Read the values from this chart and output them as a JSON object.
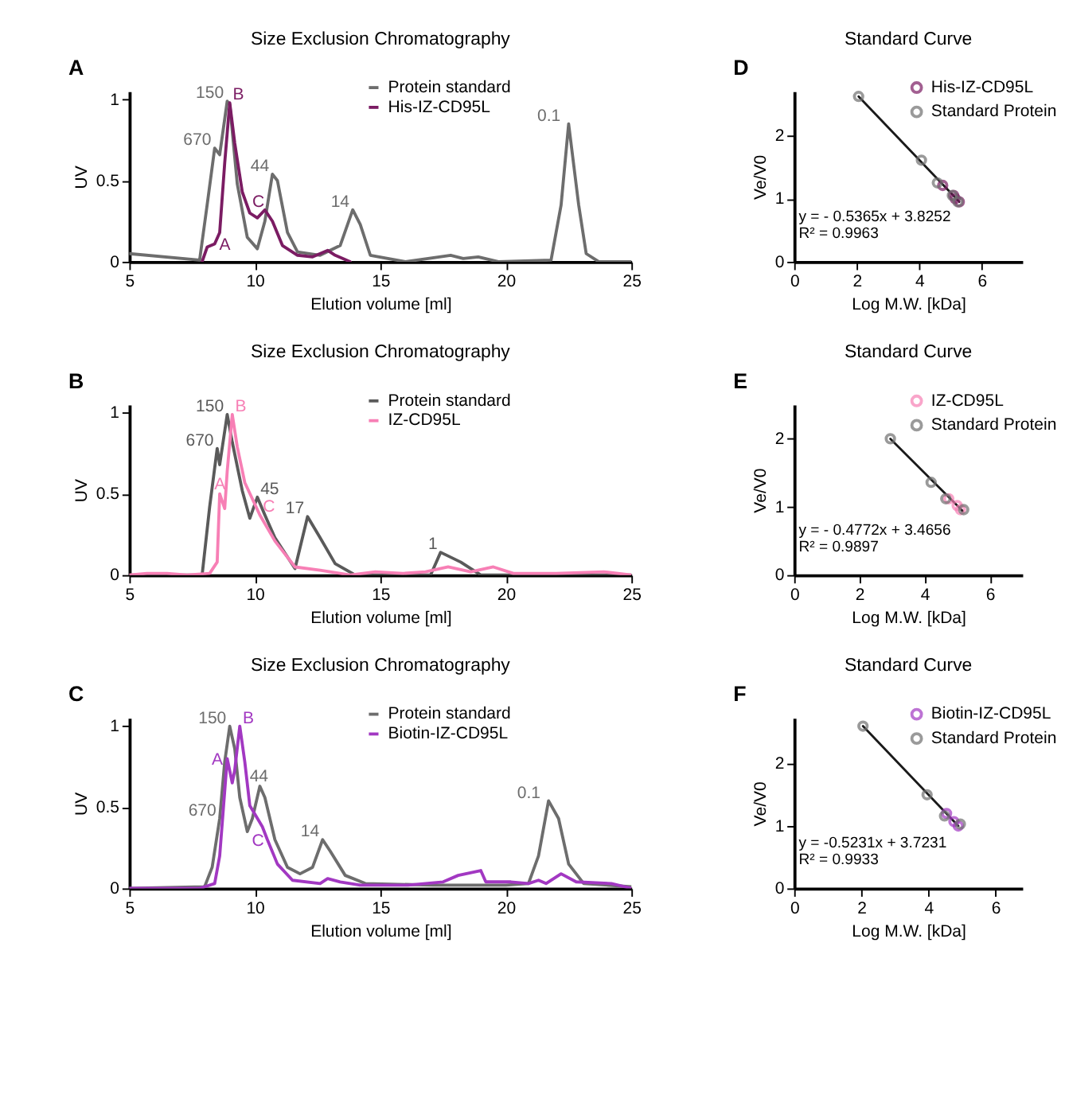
{
  "chart_data": [
    {
      "type": "line",
      "title": "Size Exclusion Chromatography",
      "xlabel": "Elution volume [ml]",
      "ylabel": "UV",
      "xlim": [
        5,
        25
      ],
      "xticks": [
        5,
        10,
        15,
        20,
        25
      ],
      "ylim": [
        0,
        1.05
      ],
      "yticks": [
        0,
        0.5,
        1
      ],
      "legend": "top right",
      "series": [
        {
          "name": "Protein standard",
          "color": "#6d6d6d",
          "x": [
            5,
            7.8,
            8.1,
            8.4,
            8.6,
            8.9,
            9.0,
            9.3,
            9.7,
            10.1,
            10.4,
            10.7,
            10.9,
            11.3,
            11.7,
            12.6,
            13.4,
            13.9,
            14.2,
            14.6,
            16.0,
            17.8,
            18.3,
            18.9,
            19.7,
            21.8,
            22.2,
            22.5,
            22.9,
            23.2,
            23.7,
            25
          ],
          "values": [
            0.05,
            0.01,
            0.35,
            0.7,
            0.66,
            0.99,
            0.97,
            0.48,
            0.15,
            0.08,
            0.25,
            0.54,
            0.5,
            0.18,
            0.06,
            0.04,
            0.1,
            0.32,
            0.23,
            0.04,
            0.0,
            0.04,
            0.02,
            0.03,
            0.0,
            0.01,
            0.35,
            0.85,
            0.35,
            0.05,
            0.0,
            0.0
          ]
        },
        {
          "name": "His-IZ-CD95L",
          "color": "#7b1c63",
          "x": [
            7.9,
            8.1,
            8.4,
            8.6,
            8.8,
            9.0,
            9.2,
            9.5,
            9.8,
            10.1,
            10.4,
            10.7,
            11.1,
            11.7,
            12.3,
            12.9,
            13.2,
            13.8
          ],
          "values": [
            0.0,
            0.09,
            0.11,
            0.18,
            0.61,
            0.98,
            0.73,
            0.43,
            0.3,
            0.27,
            0.32,
            0.25,
            0.1,
            0.04,
            0.03,
            0.07,
            0.04,
            0.0
          ]
        }
      ],
      "annotations": [
        "A",
        {
          "text": "670",
          "x": 8.4,
          "y": 0.7
        },
        {
          "text": "150",
          "x": 8.9,
          "y": 0.99
        },
        {
          "text": "B",
          "x": 9.0,
          "y": 0.98
        },
        {
          "text": "A",
          "x": 8.4,
          "y": 0.11
        },
        {
          "text": "C",
          "x": 10.4,
          "y": 0.32
        },
        {
          "text": "44",
          "x": 10.7,
          "y": 0.54
        },
        {
          "text": "14",
          "x": 13.9,
          "y": 0.32
        },
        {
          "text": "0.1",
          "x": 22.5,
          "y": 0.85
        }
      ]
    },
    {
      "type": "scatter",
      "title": "Standard Curve",
      "xlabel": "Log M.W. [kDa]",
      "ylabel": "Ve/V0",
      "xlim": [
        0,
        7.3
      ],
      "xticks": [
        0,
        2,
        4,
        6
      ],
      "ylim": [
        0,
        2.7
      ],
      "yticks": [
        0,
        1,
        2
      ],
      "legend": "top right",
      "marker": "circle",
      "series": [
        {
          "type": "line",
          "marker": "none",
          "color": "#1a1a1a",
          "x": [
            2.06,
            5.28
          ],
          "values": [
            2.62,
            0.95
          ]
        },
        {
          "name": "His-IZ-CD95L",
          "color": "#7b1c63",
          "x": [
            4.75,
            5.1,
            5.15,
            5.28
          ],
          "values": [
            1.21,
            1.05,
            1.0,
            0.95
          ]
        },
        {
          "name": "Standard Protein",
          "color": "#707070",
          "x": [
            2.06,
            4.07,
            4.58,
            5.06,
            5.24
          ],
          "values": [
            2.62,
            1.61,
            1.25,
            1.05,
            0.95
          ]
        }
      ],
      "annotations": [
        "D",
        "y = - 0.5365x + 3.8252",
        "R² = 0.9963"
      ]
    },
    {
      "type": "line",
      "title": "Size Exclusion Chromatography",
      "xlabel": "Elution volume [ml]",
      "ylabel": "UV",
      "xlim": [
        5,
        25
      ],
      "xticks": [
        5,
        10,
        15,
        20,
        25
      ],
      "ylim": [
        0,
        1.05
      ],
      "yticks": [
        0,
        0.5,
        1
      ],
      "legend": "top right",
      "series": [
        {
          "name": "Protein standard",
          "color": "#5a5a5a",
          "x": [
            5,
            7.9,
            8.2,
            8.5,
            8.6,
            8.9,
            9.1,
            9.5,
            9.8,
            10.1,
            10.4,
            10.8,
            11.6,
            12.1,
            12.6,
            13.2,
            14.0,
            17.0,
            17.2,
            17.4,
            18.2,
            19.0,
            25
          ],
          "values": [
            0.0,
            0.0,
            0.42,
            0.78,
            0.68,
            0.99,
            0.82,
            0.52,
            0.35,
            0.48,
            0.37,
            0.23,
            0.04,
            0.36,
            0.23,
            0.07,
            0.0,
            0.0,
            0.07,
            0.14,
            0.08,
            0.0,
            0.0
          ]
        },
        {
          "name": "IZ-CD95L",
          "color": "#f77fb5",
          "x": [
            5,
            5.7,
            6.5,
            7.3,
            8.2,
            8.5,
            8.6,
            8.8,
            8.9,
            9.1,
            9.3,
            9.6,
            10.2,
            10.8,
            11.6,
            12.6,
            13.8,
            14.8,
            15.9,
            16.8,
            17.7,
            18.6,
            19.5,
            20.3,
            22.0,
            23.9,
            25
          ],
          "values": [
            0.0,
            0.01,
            0.01,
            0.0,
            0.01,
            0.08,
            0.5,
            0.41,
            0.64,
            0.99,
            0.79,
            0.57,
            0.37,
            0.21,
            0.05,
            0.03,
            0.0,
            0.02,
            0.01,
            0.02,
            0.05,
            0.02,
            0.05,
            0.01,
            0.01,
            0.02,
            0.0
          ]
        }
      ],
      "annotations": [
        "B",
        {
          "text": "670",
          "x": 8.5,
          "y": 0.78
        },
        {
          "text": "150",
          "x": 8.9,
          "y": 0.99
        },
        {
          "text": "B",
          "x": 9.1,
          "y": 0.99
        },
        {
          "text": "A",
          "x": 8.6,
          "y": 0.5
        },
        {
          "text": "45",
          "x": 10.1,
          "y": 0.48
        },
        {
          "text": "C",
          "x": 10.2,
          "y": 0.37
        },
        {
          "text": "17",
          "x": 12.1,
          "y": 0.36
        },
        {
          "text": "1",
          "x": 17.4,
          "y": 0.14
        }
      ]
    },
    {
      "type": "scatter",
      "title": "Standard Curve",
      "xlabel": "Log M.W. [kDa]",
      "ylabel": "Ve/V0",
      "xlim": [
        0,
        7
      ],
      "xticks": [
        0,
        2,
        4,
        6
      ],
      "ylim": [
        0,
        2.5
      ],
      "yticks": [
        0,
        1,
        2
      ],
      "legend": "top right",
      "marker": "circle",
      "series": [
        {
          "type": "line",
          "marker": "none",
          "color": "#1a1a1a",
          "x": [
            2.95,
            5.17
          ],
          "values": [
            2.0,
            0.94
          ]
        },
        {
          "name": "IZ-CD95L",
          "color": "#f77fb5",
          "x": [
            4.74,
            5.0,
            5.1
          ],
          "values": [
            1.12,
            1.02,
            0.96
          ]
        },
        {
          "name": "Standard Protein",
          "color": "#707070",
          "x": [
            2.95,
            4.2,
            4.65,
            5.2
          ],
          "values": [
            2.0,
            1.36,
            1.12,
            0.96
          ]
        }
      ],
      "annotations": [
        "E",
        "y = - 0.4772x + 3.4656",
        "R² = 0.9897"
      ]
    },
    {
      "type": "line",
      "title": "Size Exclusion Chromatography",
      "xlabel": "Elution volume [ml]",
      "ylabel": "UV",
      "xlim": [
        5,
        25
      ],
      "xticks": [
        5,
        10,
        15,
        20,
        25
      ],
      "ylim": [
        0,
        1.05
      ],
      "yticks": [
        0,
        0.5,
        1
      ],
      "legend": "top right",
      "series": [
        {
          "name": "Protein standard",
          "color": "#6d6d6d",
          "x": [
            5,
            8.0,
            8.3,
            8.6,
            8.8,
            9.0,
            9.2,
            9.4,
            9.7,
            9.9,
            10.2,
            10.4,
            10.8,
            11.3,
            11.8,
            12.3,
            12.7,
            13.0,
            13.6,
            14.4,
            17.1,
            20.0,
            20.9,
            21.3,
            21.7,
            22.1,
            22.5,
            23.1,
            25
          ],
          "values": [
            0.0,
            0.01,
            0.13,
            0.43,
            0.78,
            1.0,
            0.86,
            0.56,
            0.35,
            0.43,
            0.63,
            0.56,
            0.3,
            0.13,
            0.09,
            0.13,
            0.3,
            0.23,
            0.08,
            0.03,
            0.02,
            0.02,
            0.03,
            0.2,
            0.54,
            0.43,
            0.15,
            0.03,
            0.01
          ]
        },
        {
          "name": "Biotin-IZ-CD95L",
          "color": "#a238c2",
          "x": [
            5,
            7.8,
            8.4,
            8.6,
            8.9,
            9.1,
            9.2,
            9.4,
            9.6,
            9.8,
            10.3,
            10.5,
            10.9,
            11.5,
            12.6,
            12.9,
            13.4,
            14.2,
            16.1,
            17.5,
            18.1,
            19.0,
            19.2,
            20.2,
            20.9,
            21.3,
            21.6,
            22.2,
            22.8,
            24.2,
            25
          ],
          "values": [
            0.0,
            0.0,
            0.03,
            0.2,
            0.8,
            0.65,
            0.73,
            1.0,
            0.78,
            0.51,
            0.38,
            0.3,
            0.15,
            0.05,
            0.03,
            0.06,
            0.04,
            0.02,
            0.02,
            0.04,
            0.08,
            0.11,
            0.04,
            0.04,
            0.03,
            0.05,
            0.03,
            0.09,
            0.04,
            0.03,
            0.0
          ]
        }
      ],
      "annotations": [
        "C",
        {
          "text": "670",
          "x": 8.6,
          "y": 0.43
        },
        {
          "text": "150",
          "x": 9.0,
          "y": 1.0
        },
        {
          "text": "B",
          "x": 9.4,
          "y": 1.0
        },
        {
          "text": "A",
          "x": 8.9,
          "y": 0.8
        },
        {
          "text": "44",
          "x": 10.2,
          "y": 0.63
        },
        {
          "text": "C",
          "x": 10.5,
          "y": 0.3
        },
        {
          "text": "14",
          "x": 12.7,
          "y": 0.3
        },
        {
          "text": "0.1",
          "x": 21.7,
          "y": 0.54
        }
      ]
    },
    {
      "type": "scatter",
      "title": "Standard Curve",
      "xlabel": "Log M.W. [kDa]",
      "ylabel": "Ve/V0",
      "xlim": [
        0,
        6.8
      ],
      "xticks": [
        0,
        2,
        4,
        6
      ],
      "ylim": [
        0,
        2.73
      ],
      "yticks": [
        0,
        1,
        2
      ],
      "legend": "top right",
      "marker": "circle",
      "series": [
        {
          "type": "line",
          "marker": "none",
          "color": "#1a1a1a",
          "x": [
            2.05,
            4.89
          ],
          "values": [
            2.6,
            1.0
          ]
        },
        {
          "name": "Biotin-IZ-CD95L",
          "color": "#a238c2",
          "x": [
            4.54,
            4.76,
            4.89
          ],
          "values": [
            1.2,
            1.07,
            1.0
          ]
        },
        {
          "name": "Standard Protein",
          "color": "#707070",
          "x": [
            2.05,
            3.96,
            4.48,
            4.95
          ],
          "values": [
            2.6,
            1.5,
            1.16,
            1.03
          ]
        }
      ],
      "annotations": [
        "F",
        "y = -0.5231x + 3.7231",
        "R² = 0.9933"
      ]
    }
  ]
}
